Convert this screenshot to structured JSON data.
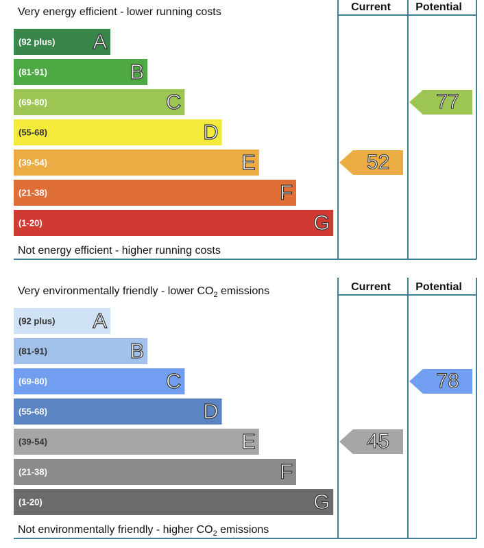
{
  "panels": [
    {
      "top_label": [
        "Very energy efficient - lower running costs"
      ],
      "bottom_label": [
        "Not energy efficient - higher running costs"
      ],
      "headers": [
        "Current",
        "Potential"
      ],
      "bands": [
        {
          "range": "(92 plus)",
          "letter": "A",
          "color": "#39864a",
          "text_color": "#ffffff"
        },
        {
          "range": "(81-91)",
          "letter": "B",
          "color": "#4ea944",
          "text_color": "#ffffff"
        },
        {
          "range": "(69-80)",
          "letter": "C",
          "color": "#9dc553",
          "text_color": "#ffffff"
        },
        {
          "range": "(55-68)",
          "letter": "D",
          "color": "#f4ea3b",
          "text_color": "#333333"
        },
        {
          "range": "(39-54)",
          "letter": "E",
          "color": "#eaac43",
          "text_color": "#ffffff"
        },
        {
          "range": "(21-38)",
          "letter": "F",
          "color": "#df6e37",
          "text_color": "#ffffff"
        },
        {
          "range": "(1-20)",
          "letter": "G",
          "color": "#cf3a33",
          "text_color": "#ffffff"
        }
      ],
      "current": 52,
      "potential": 77
    },
    {
      "top_label": [
        "Very environmentally friendly - lower CO",
        "2",
        " emissions"
      ],
      "bottom_label": [
        "Not environmentally friendly - higher CO",
        "2",
        " emissions"
      ],
      "headers": [
        "Current",
        "Potential"
      ],
      "bands": [
        {
          "range": "(92 plus)",
          "letter": "A",
          "color": "#cfe1f5",
          "text_color": "#333333"
        },
        {
          "range": "(81-91)",
          "letter": "B",
          "color": "#a2c1ea",
          "text_color": "#333333"
        },
        {
          "range": "(69-80)",
          "letter": "C",
          "color": "#719ef0",
          "text_color": "#ffffff"
        },
        {
          "range": "(55-68)",
          "letter": "D",
          "color": "#5b84c3",
          "text_color": "#ffffff"
        },
        {
          "range": "(39-54)",
          "letter": "E",
          "color": "#a6a6a6",
          "text_color": "#333333"
        },
        {
          "range": "(21-38)",
          "letter": "F",
          "color": "#8b8b8b",
          "text_color": "#ffffff"
        },
        {
          "range": "(1-20)",
          "letter": "G",
          "color": "#6c6c6c",
          "text_color": "#ffffff"
        }
      ],
      "current": 45,
      "potential": 78
    }
  ]
}
